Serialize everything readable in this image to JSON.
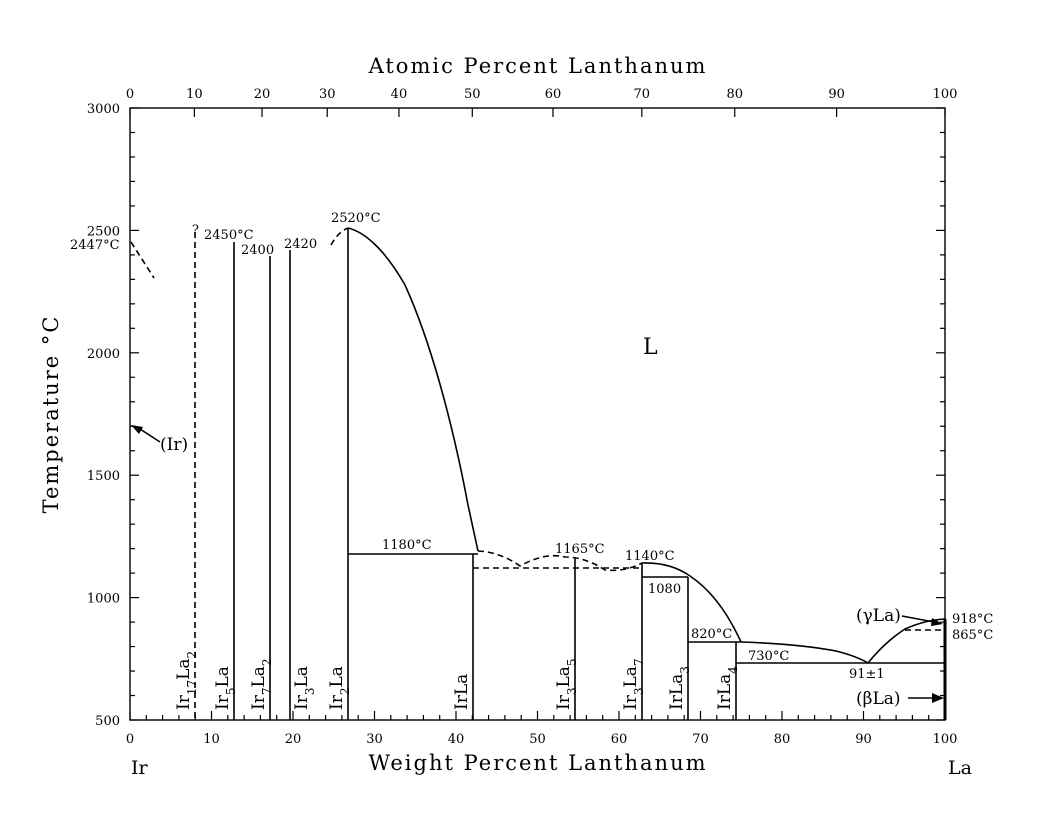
{
  "title": "Atomic Percent Lanthanum",
  "x_label": "Weight Percent Lanthanum",
  "y_label": "Temperature °C",
  "left_element": "Ir",
  "right_element": "La",
  "bottom_ticks": [
    "0",
    "10",
    "20",
    "30",
    "40",
    "50",
    "60",
    "70",
    "80",
    "90",
    "100"
  ],
  "top_ticks": [
    {
      "label": "0",
      "wt": 0
    },
    {
      "label": "10",
      "wt": 7.9
    },
    {
      "label": "20",
      "wt": 16.2
    },
    {
      "label": "30",
      "wt": 24.2
    },
    {
      "label": "40",
      "wt": 33.0
    },
    {
      "label": "50",
      "wt": 42.0
    },
    {
      "label": "60",
      "wt": 51.9
    },
    {
      "label": "70",
      "wt": 62.8
    },
    {
      "label": "80",
      "wt": 74.2
    },
    {
      "label": "90",
      "wt": 86.7
    },
    {
      "label": "100",
      "wt": 100
    }
  ],
  "y_ticks": [
    "500",
    "1000",
    "1500",
    "2000",
    "2500",
    "3000"
  ],
  "chart_data": {
    "type": "phase-diagram",
    "system": "Ir-La",
    "x_range": [
      0,
      100
    ],
    "y_range": [
      500,
      3000
    ],
    "liquidus": [
      [
        26.7,
        2520
      ],
      [
        29,
        2460
      ],
      [
        32,
        2300
      ],
      [
        35,
        2090
      ],
      [
        38,
        1800
      ],
      [
        40,
        1550
      ],
      [
        42.3,
        1185
      ]
    ],
    "liquidus_high_la": [
      [
        74.2,
        820
      ],
      [
        72,
        950
      ],
      [
        69,
        1075
      ],
      [
        66,
        1130
      ],
      [
        62.7,
        1140
      ]
    ],
    "liquidus_la": [
      [
        90.5,
        730
      ],
      [
        93,
        815
      ],
      [
        96,
        885
      ],
      [
        99,
        918
      ],
      [
        100,
        918
      ]
    ],
    "dashed_liquidus": [
      [
        42.3,
        1185
      ],
      [
        45,
        1160
      ],
      [
        47,
        1130
      ],
      [
        50,
        1150
      ],
      [
        54,
        1165
      ],
      [
        56,
        1150
      ],
      [
        58,
        1110
      ],
      [
        60,
        1120
      ],
      [
        62.7,
        1140
      ]
    ],
    "compounds": [
      {
        "name": "Ir17La2",
        "wt": 7.9,
        "top": 2510,
        "dashed": true
      },
      {
        "name": "Ir5La",
        "wt": 12.6,
        "top": 2450
      },
      {
        "name": "Ir7La2",
        "wt": 17.1,
        "top": 2400
      },
      {
        "name": "Ir3La",
        "wt": 19.4,
        "top": 2420
      },
      {
        "name": "Ir2La",
        "wt": 26.7,
        "top": 2520
      },
      {
        "name": "IrLa",
        "wt": 42.0,
        "top": 1180
      },
      {
        "name": "Ir3La5",
        "wt": 54.6,
        "top": 1165
      },
      {
        "name": "Ir3La7",
        "wt": 62.8,
        "top": 1140
      },
      {
        "name": "IrLa3",
        "wt": 68.4,
        "top": 1080
      },
      {
        "name": "IrLa4",
        "wt": 74.3,
        "top": 820
      }
    ],
    "isotherms": [
      {
        "from": 26.7,
        "to": 42.3,
        "t": 1180
      },
      {
        "from": 42.0,
        "to": 62.8,
        "t": 1120,
        "dashed": true
      },
      {
        "from": 62.8,
        "to": 68.4,
        "t": 1080
      },
      {
        "from": 68.4,
        "to": 74.3,
        "t": 820
      },
      {
        "from": 74.3,
        "to": 100,
        "t": 730
      },
      {
        "from": 99,
        "to": 100,
        "t": 865,
        "dashed": true
      }
    ],
    "annotations": {
      "ir_melt": "2447°C",
      "q": "?",
      "t2450": "2450°C",
      "t2400": "2400",
      "t2420": "2420",
      "t2520": "2520°C",
      "t1180": "1180°C",
      "t1165": "1165°C",
      "t1140": "1140°C",
      "t1080": "1080",
      "t820": "820°C",
      "t730": "730°C",
      "eutectic": "91±1",
      "la_melt": "918°C",
      "t865": "865°C",
      "liquid": "L"
    },
    "phase_labels": {
      "ir_solid": "(Ir)",
      "gamma_la": "(γLa)",
      "beta_la": "(βLa)"
    }
  }
}
